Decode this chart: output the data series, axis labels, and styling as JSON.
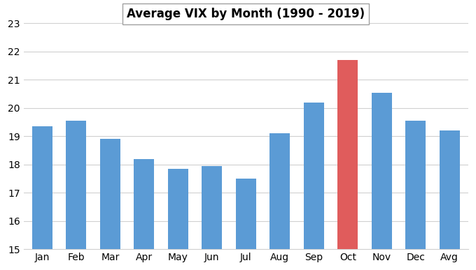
{
  "categories": [
    "Jan",
    "Feb",
    "Mar",
    "Apr",
    "May",
    "Jun",
    "Jul",
    "Aug",
    "Sep",
    "Oct",
    "Nov",
    "Dec",
    "Avg"
  ],
  "bar_heights": [
    4.35,
    4.55,
    3.9,
    3.2,
    2.85,
    2.95,
    2.5,
    4.1,
    5.2,
    6.7,
    5.55,
    4.55,
    4.2
  ],
  "bar_colors": [
    "#5B9BD5",
    "#5B9BD5",
    "#5B9BD5",
    "#5B9BD5",
    "#5B9BD5",
    "#5B9BD5",
    "#5B9BD5",
    "#5B9BD5",
    "#5B9BD5",
    "#E05C5C",
    "#5B9BD5",
    "#5B9BD5",
    "#5B9BD5"
  ],
  "title": "Average VIX by Month (1990 - 2019)",
  "ymin": 15,
  "ymax": 23,
  "yticks": [
    15,
    16,
    17,
    18,
    19,
    20,
    21,
    22,
    23
  ],
  "background_color": "#FFFFFF",
  "grid_color": "#D0D0D0",
  "title_fontsize": 12,
  "tick_fontsize": 10,
  "bar_bottom": 15,
  "bar_width": 0.6
}
